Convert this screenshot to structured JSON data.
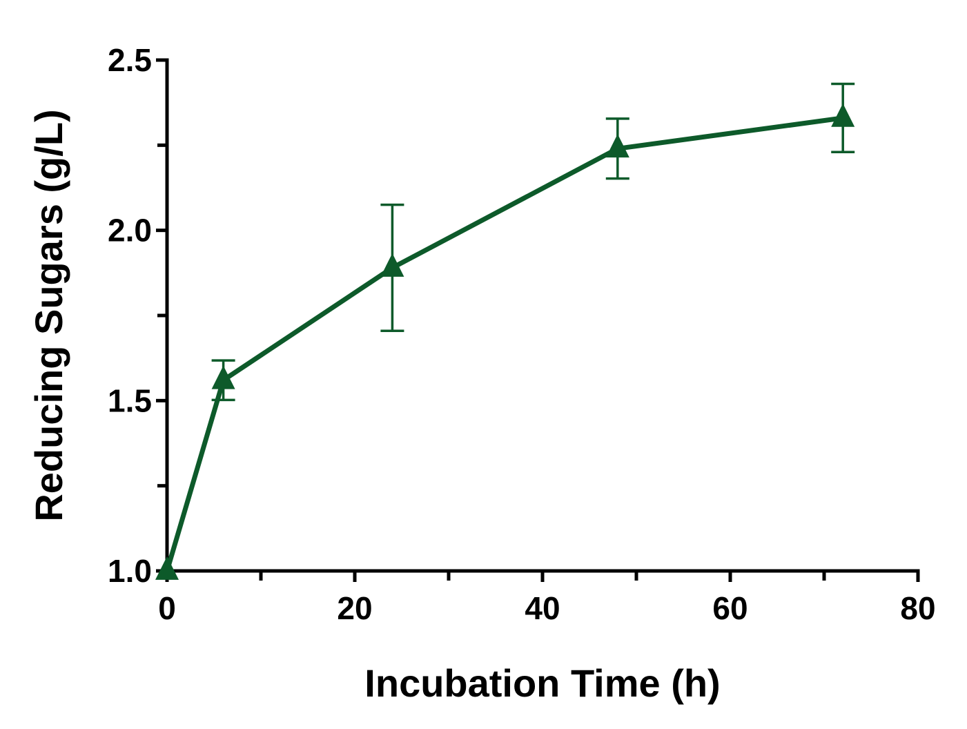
{
  "chart_data": {
    "type": "line",
    "title": "",
    "xlabel": "Incubation Time (h)",
    "ylabel": "Reducing Sugars (g/L)",
    "xlim": [
      0,
      80
    ],
    "ylim": [
      1.0,
      2.5
    ],
    "x_major_ticks": [
      0,
      20,
      40,
      60,
      80
    ],
    "x_minor_ticks": [
      10,
      30,
      50,
      70
    ],
    "x_tick_labels": [
      "0",
      "20",
      "40",
      "60",
      "80"
    ],
    "y_major_ticks": [
      1.0,
      1.5,
      2.0,
      2.5
    ],
    "y_minor_ticks": [
      1.25,
      1.75,
      2.25
    ],
    "y_tick_labels": [
      "1.0",
      "1.5",
      "2.0",
      "2.5"
    ],
    "grid": false,
    "legend": "none",
    "series": [
      {
        "name": "Reducing Sugars",
        "color": "#0d5a2a",
        "marker": "triangle",
        "x": [
          0,
          6,
          24,
          48,
          72
        ],
        "values": [
          1.0,
          1.56,
          1.89,
          2.24,
          2.33
        ],
        "error": [
          0,
          0.058,
          0.185,
          0.088,
          0.1
        ]
      }
    ]
  }
}
